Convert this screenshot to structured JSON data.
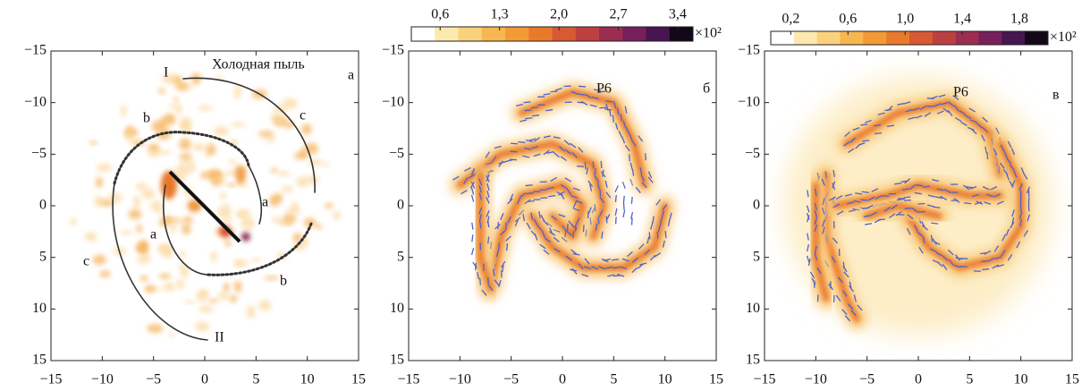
{
  "chart_data": [
    {
      "type": "image",
      "xlim": [
        -15,
        15
      ],
      "ylim": [
        -15,
        15
      ],
      "y_inverted": true,
      "xticks": [
        {
          "value": -15,
          "label": "−15"
        },
        {
          "value": -10,
          "label": "−10"
        },
        {
          "value": -5,
          "label": "−5"
        },
        0,
        5,
        10,
        15
      ],
      "yticks": [
        {
          "value": -15,
          "label": "−15"
        },
        {
          "value": -10,
          "label": "−10"
        },
        {
          "value": -5,
          "label": "−5"
        },
        0,
        5,
        10,
        15
      ],
      "panel_label": "a",
      "annotations": [
        "Холодная пыль",
        "I",
        "II",
        "a",
        "a",
        "b",
        "b",
        "c",
        "c"
      ]
    },
    {
      "type": "image",
      "xlim": [
        -15,
        15
      ],
      "ylim": [
        -15,
        15
      ],
      "y_inverted": true,
      "xticks": [
        {
          "value": -15,
          "label": "−15"
        },
        {
          "value": -10,
          "label": "−10"
        },
        {
          "value": -5,
          "label": "−5"
        },
        0,
        5,
        10,
        15
      ],
      "yticks": [
        {
          "value": -15,
          "label": "−15"
        },
        {
          "value": -10,
          "label": "−10"
        },
        {
          "value": -5,
          "label": "−5"
        },
        0,
        5,
        10,
        15
      ],
      "panel_label": "б",
      "annotations": [
        "P6"
      ],
      "colorbar": {
        "clim": [
          0.26,
          3.58
        ],
        "ticks": [
          {
            "value": 0.6,
            "label": "0,6"
          },
          {
            "value": 1.3,
            "label": "1,3"
          },
          {
            "value": 2.0,
            "label": "2,0"
          },
          {
            "value": 2.7,
            "label": "2,7"
          },
          {
            "value": 3.4,
            "label": "3,4"
          }
        ],
        "unit": "×10²",
        "colormap": [
          "#ffffff",
          "#fde9b0",
          "#fbd27c",
          "#f8b650",
          "#f39a35",
          "#e97a2c",
          "#d75a32",
          "#bd4040",
          "#9c2d50",
          "#76205c",
          "#461552",
          "#120818"
        ]
      }
    },
    {
      "type": "image",
      "xlim": [
        -15,
        15
      ],
      "ylim": [
        -15,
        15
      ],
      "y_inverted": true,
      "xticks": [
        {
          "value": -15,
          "label": "−15"
        },
        {
          "value": -10,
          "label": "−10"
        },
        {
          "value": -5,
          "label": "−5"
        },
        0,
        5,
        10,
        15
      ],
      "yticks": [
        {
          "value": -15,
          "label": "−15"
        },
        {
          "value": -10,
          "label": "−10"
        },
        {
          "value": -5,
          "label": "−5"
        },
        0,
        5,
        10,
        15
      ],
      "panel_label": "в",
      "annotations": [
        "P6"
      ],
      "colorbar": {
        "clim": [
          0.06,
          2.0
        ],
        "ticks": [
          {
            "value": 0.2,
            "label": "0,2"
          },
          {
            "value": 0.6,
            "label": "0,6"
          },
          {
            "value": 1.0,
            "label": "1,0"
          },
          {
            "value": 1.4,
            "label": "1,4"
          },
          {
            "value": 1.8,
            "label": "1,8"
          }
        ],
        "unit": "×10²",
        "colormap": [
          "#ffffff",
          "#fde9b0",
          "#fbd27c",
          "#f8b650",
          "#f39a35",
          "#e97a2c",
          "#d75a32",
          "#bd4040",
          "#9c2d50",
          "#76205c",
          "#461552",
          "#120818"
        ]
      }
    }
  ]
}
